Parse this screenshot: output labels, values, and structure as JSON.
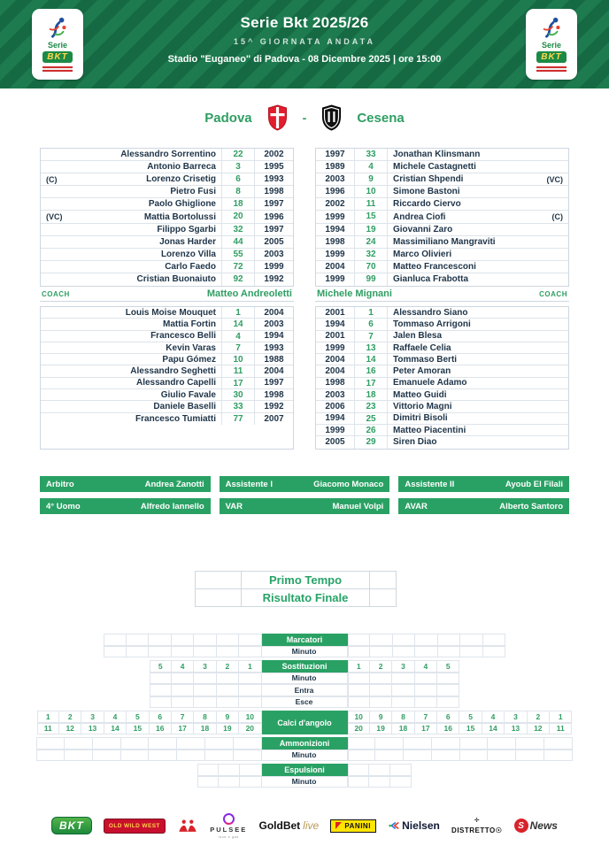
{
  "colors": {
    "banner_green": "#1d7b4f",
    "banner_stripe": "#166a43",
    "accent_green": "#2f9e63",
    "bar_green": "#2aa164",
    "text_dark": "#1e3448",
    "padova_red": "#e11d2e",
    "cesena_black": "#111111",
    "bkt_yellow": "#ffd84d"
  },
  "header": {
    "title": "Serie Bkt 2025/26",
    "subtitle": "15^ GIORNATA ANDATA",
    "venue": "Stadio \"Euganeo\" di Padova - 08 Dicembre 2025 | ore 15:00",
    "badge": {
      "serie": "Serie",
      "bkt": "BKT"
    }
  },
  "match": {
    "home_team": "Padova",
    "away_team": "Cesena",
    "separator": "-"
  },
  "home": {
    "coach_label": "COACH",
    "coach": "Matteo Andreoletti",
    "xi": [
      {
        "marker": "",
        "name": "Alessandro Sorrentino",
        "number": "22",
        "year": "2002"
      },
      {
        "marker": "",
        "name": "Antonio Barreca",
        "number": "3",
        "year": "1995"
      },
      {
        "marker": "(C)",
        "name": "Lorenzo Crisetig",
        "number": "6",
        "year": "1993"
      },
      {
        "marker": "",
        "name": "Pietro Fusi",
        "number": "8",
        "year": "1998"
      },
      {
        "marker": "",
        "name": "Paolo Ghiglione",
        "number": "18",
        "year": "1997"
      },
      {
        "marker": "(VC)",
        "name": "Mattia Bortolussi",
        "number": "20",
        "year": "1996"
      },
      {
        "marker": "",
        "name": "Filippo Sgarbi",
        "number": "32",
        "year": "1997"
      },
      {
        "marker": "",
        "name": "Jonas Harder",
        "number": "44",
        "year": "2005"
      },
      {
        "marker": "",
        "name": "Lorenzo Villa",
        "number": "55",
        "year": "2003"
      },
      {
        "marker": "",
        "name": "Carlo Faedo",
        "number": "72",
        "year": "1999"
      },
      {
        "marker": "",
        "name": "Cristian Buonaiuto",
        "number": "92",
        "year": "1992"
      }
    ],
    "bench": [
      {
        "marker": "",
        "name": "Louis Moise Mouquet",
        "number": "1",
        "year": "2004"
      },
      {
        "marker": "",
        "name": "Mattia Fortin",
        "number": "14",
        "year": "2003"
      },
      {
        "marker": "",
        "name": "Francesco Belli",
        "number": "4",
        "year": "1994"
      },
      {
        "marker": "",
        "name": "Kevin Varas",
        "number": "7",
        "year": "1993"
      },
      {
        "marker": "",
        "name": "Papu Gómez",
        "number": "10",
        "year": "1988"
      },
      {
        "marker": "",
        "name": "Alessandro Seghetti",
        "number": "11",
        "year": "2004"
      },
      {
        "marker": "",
        "name": "Alessandro Capelli",
        "number": "17",
        "year": "1997"
      },
      {
        "marker": "",
        "name": "Giulio Favale",
        "number": "30",
        "year": "1998"
      },
      {
        "marker": "",
        "name": "Daniele Baselli",
        "number": "33",
        "year": "1992"
      },
      {
        "marker": "",
        "name": "Francesco Tumiatti",
        "number": "77",
        "year": "2007"
      }
    ]
  },
  "away": {
    "coach_label": "COACH",
    "coach": "Michele Mignani",
    "xi": [
      {
        "marker": "",
        "name": "Jonathan Klinsmann",
        "number": "33",
        "year": "1997"
      },
      {
        "marker": "",
        "name": "Michele Castagnetti",
        "number": "4",
        "year": "1989"
      },
      {
        "marker": "(VC)",
        "name": "Cristian Shpendi",
        "number": "9",
        "year": "2003"
      },
      {
        "marker": "",
        "name": "Simone Bastoni",
        "number": "10",
        "year": "1996"
      },
      {
        "marker": "",
        "name": "Riccardo Ciervo",
        "number": "11",
        "year": "2002"
      },
      {
        "marker": "(C)",
        "name": "Andrea Ciofi",
        "number": "15",
        "year": "1999"
      },
      {
        "marker": "",
        "name": "Giovanni Zaro",
        "number": "19",
        "year": "1994"
      },
      {
        "marker": "",
        "name": "Massimiliano Mangraviti",
        "number": "24",
        "year": "1998"
      },
      {
        "marker": "",
        "name": "Marco Olivieri",
        "number": "32",
        "year": "1999"
      },
      {
        "marker": "",
        "name": "Matteo Francesconi",
        "number": "70",
        "year": "2004"
      },
      {
        "marker": "",
        "name": "Gianluca Frabotta",
        "number": "99",
        "year": "1999"
      }
    ],
    "bench": [
      {
        "marker": "",
        "name": "Alessandro Siano",
        "number": "1",
        "year": "2001"
      },
      {
        "marker": "",
        "name": "Tommaso Arrigoni",
        "number": "6",
        "year": "1994"
      },
      {
        "marker": "",
        "name": "Jalen Blesa",
        "number": "7",
        "year": "2001"
      },
      {
        "marker": "",
        "name": "Raffaele Celia",
        "number": "13",
        "year": "1999"
      },
      {
        "marker": "",
        "name": "Tommaso Berti",
        "number": "14",
        "year": "2004"
      },
      {
        "marker": "",
        "name": "Peter Amoran",
        "number": "16",
        "year": "2004"
      },
      {
        "marker": "",
        "name": "Emanuele Adamo",
        "number": "17",
        "year": "1998"
      },
      {
        "marker": "",
        "name": "Matteo Guidi",
        "number": "18",
        "year": "2003"
      },
      {
        "marker": "",
        "name": "Vittorio Magni",
        "number": "23",
        "year": "2006"
      },
      {
        "marker": "",
        "name": "Dimitri Bisoli",
        "number": "25",
        "year": "1994"
      },
      {
        "marker": "",
        "name": "Matteo Piacentini",
        "number": "26",
        "year": "1999"
      },
      {
        "marker": "",
        "name": "Siren Diao",
        "number": "29",
        "year": "2005"
      }
    ]
  },
  "officials": [
    {
      "label": "Arbitro",
      "name": "Andrea Zanotti"
    },
    {
      "label": "Assistente I",
      "name": "Giacomo Monaco"
    },
    {
      "label": "Assistente II",
      "name": "Ayoub El Filali"
    },
    {
      "label": "4° Uomo",
      "name": "Alfredo Iannello"
    },
    {
      "label": "VAR",
      "name": "Manuel Volpi"
    },
    {
      "label": "AVAR",
      "name": "Alberto Santoro"
    }
  ],
  "result": {
    "rows": [
      "Primo Tempo",
      "Risultato Finale"
    ]
  },
  "events": {
    "marcatori": {
      "title": "Marcatori",
      "minuto": "Minuto",
      "cells_per_side": 7,
      "cell_w": 25.5
    },
    "sostituzioni": {
      "title": "Sostituzioni",
      "left_numbers": [
        "5",
        "4",
        "3",
        "2",
        "1"
      ],
      "right_numbers": [
        "1",
        "2",
        "3",
        "4",
        "5"
      ],
      "rows": [
        "Minuto",
        "Entra",
        "Esce"
      ],
      "cell_w": 25.4
    },
    "calci": {
      "title": "Calci d'angolo",
      "left_top": [
        "1",
        "2",
        "3",
        "4",
        "5",
        "6",
        "7",
        "8",
        "9",
        "10"
      ],
      "left_bottom": [
        "11",
        "12",
        "13",
        "14",
        "15",
        "16",
        "17",
        "18",
        "19",
        "20"
      ],
      "right_top": [
        "10",
        "9",
        "8",
        "7",
        "6",
        "5",
        "4",
        "3",
        "2",
        "1"
      ],
      "right_bottom": [
        "20",
        "19",
        "18",
        "17",
        "16",
        "15",
        "14",
        "13",
        "12",
        "11"
      ],
      "cell_w": 25.4
    },
    "ammonizioni": {
      "title": "Ammonizioni",
      "minuto": "Minuto",
      "cells_per_side": 8,
      "cell_w": 31.8
    },
    "espulsioni": {
      "title": "Espulsioni",
      "minuto": "Minuto",
      "cells_per_side": 3,
      "cell_w": 24.3
    }
  },
  "sponsors": {
    "bkt": "BKT",
    "old_wild_west": "OLD WILD WEST",
    "pulsee": "PULSEE",
    "pulsee_sub": "luce e gas",
    "goldbet": "GoldBet",
    "goldbet_live": "live",
    "panini": "PANINI",
    "nielsen": "Nielsen",
    "distretto": "DISTRETTO",
    "snews_s": "S",
    "snews_news": "News"
  }
}
